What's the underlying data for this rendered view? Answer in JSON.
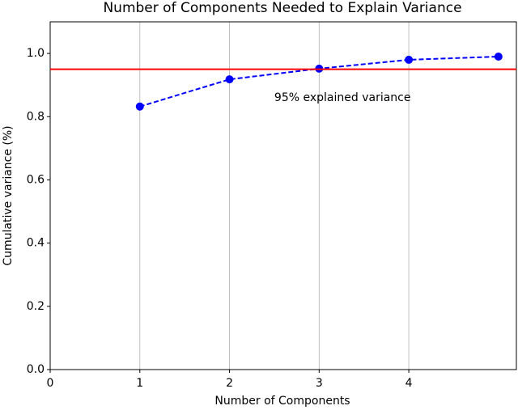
{
  "chart_data": {
    "type": "line",
    "title": "Number of Components Needed to Explain Variance",
    "xlabel": "Number of Components",
    "ylabel": "Cumulative variance (%)",
    "x": [
      1,
      2,
      3,
      4,
      5
    ],
    "series": [
      {
        "color": "#0000ff",
        "values": [
          0.832,
          0.918,
          0.952,
          0.98,
          0.99
        ]
      }
    ],
    "xlim": [
      0,
      5.2
    ],
    "ylim": [
      0,
      1.1
    ],
    "xticks": [
      0,
      1,
      2,
      3,
      4
    ],
    "yticks": [
      {
        "value": 0,
        "label": "0.0"
      },
      0.2,
      0.4,
      0.6,
      0.8,
      {
        "value": 1,
        "label": "1.0"
      }
    ],
    "grid": "x",
    "hline": {
      "value": 0.95,
      "color": "#ff0000"
    },
    "annotation": {
      "text": "95% explained variance",
      "x": 2.5,
      "y": 0.86,
      "color": "#ff0000"
    }
  }
}
